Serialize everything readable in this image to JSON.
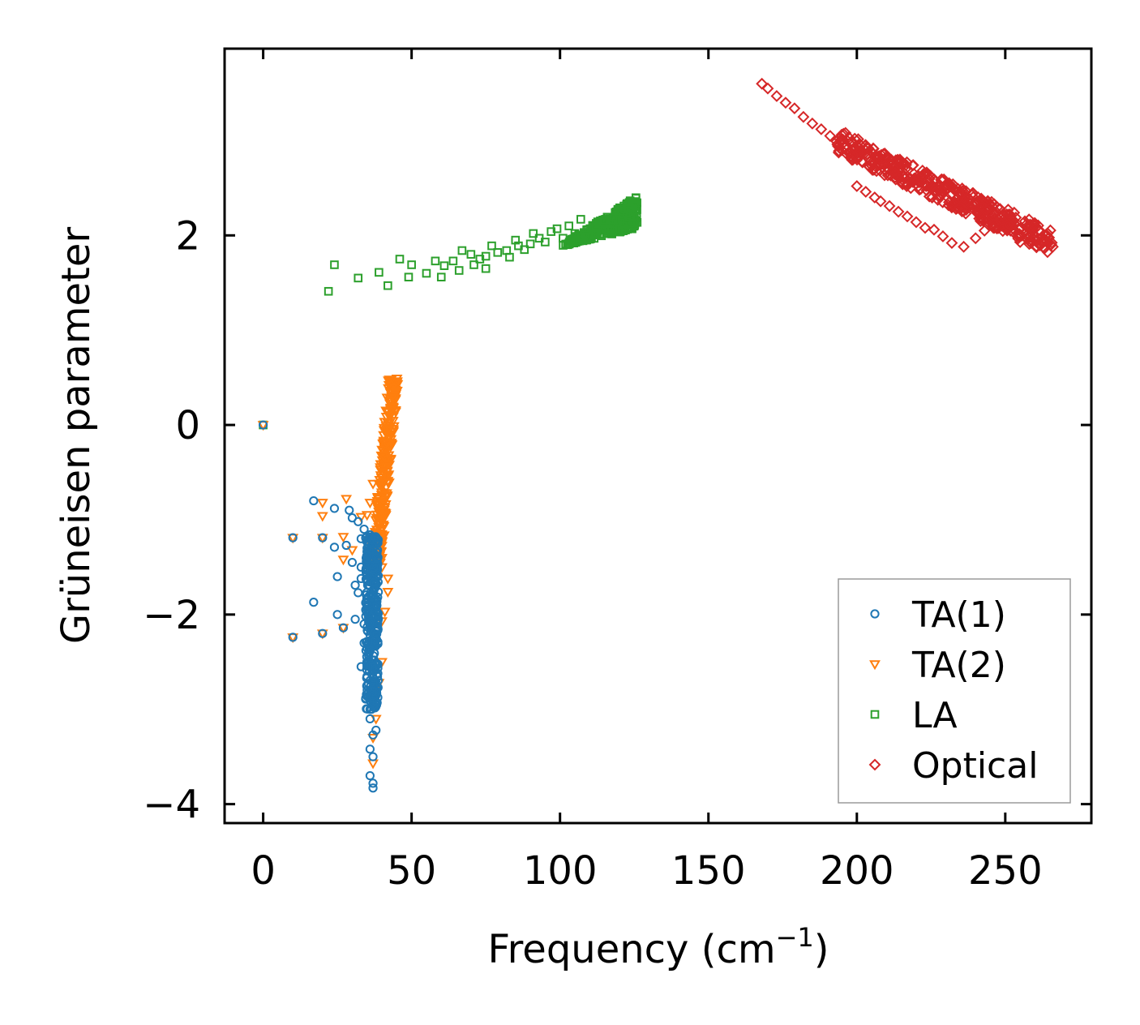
{
  "chart_data": {
    "type": "scatter",
    "title": "",
    "xlabel": "Frequency (cm",
    "xlabel_sup": "−1",
    "xlabel_tail": ")",
    "ylabel": "Grüneisen parameter",
    "xlim": [
      -13,
      279
    ],
    "ylim": [
      -4.2,
      3.97
    ],
    "xticks": [
      0,
      50,
      100,
      150,
      200,
      250
    ],
    "xtick_labels": [
      "0",
      "50",
      "100",
      "150",
      "200",
      "250"
    ],
    "yticks": [
      -4,
      -2,
      0,
      2
    ],
    "ytick_labels": [
      "−4",
      "−2",
      "0",
      "2"
    ],
    "grid": false,
    "legend_position": "bottom-right",
    "series": [
      {
        "name": "TA(1)",
        "marker": "circle",
        "color": "#1f77b4",
        "points": [
          [
            0,
            0
          ],
          [
            10,
            -1.19
          ],
          [
            20,
            -1.19
          ],
          [
            17,
            -0.8
          ],
          [
            24,
            -0.88
          ],
          [
            29,
            -0.9
          ],
          [
            30,
            -0.98
          ],
          [
            32,
            -1.02
          ],
          [
            28,
            -1.27
          ],
          [
            24,
            -1.29
          ],
          [
            30,
            -1.45
          ],
          [
            33,
            -1.5
          ],
          [
            25,
            -1.6
          ],
          [
            31,
            -1.69
          ],
          [
            32,
            -1.77
          ],
          [
            17,
            -1.87
          ],
          [
            25,
            -2.0
          ],
          [
            31,
            -2.05
          ],
          [
            34,
            -2.1
          ],
          [
            27,
            -2.14
          ],
          [
            20,
            -2.2
          ],
          [
            10,
            -2.24
          ],
          [
            33,
            -1.2
          ],
          [
            34,
            -1.1
          ],
          [
            35,
            -1.3
          ],
          [
            33,
            -1.62
          ],
          [
            35,
            -1.9
          ],
          [
            38,
            -1.33
          ],
          [
            34,
            -2.3
          ],
          [
            33,
            -2.55
          ],
          [
            36,
            -3.0
          ],
          [
            36,
            -3.1
          ],
          [
            37,
            -3.27
          ],
          [
            36,
            -3.42
          ],
          [
            37,
            -3.5
          ],
          [
            36,
            -3.7
          ],
          [
            37,
            -3.78
          ],
          [
            37,
            -3.83
          ],
          [
            38,
            -3.22
          ],
          [
            37,
            -2.93
          ]
        ],
        "dense": [
          {
            "x": [
              34,
              39
            ],
            "y": [
              -3.0,
              -1.15
            ],
            "n": 320
          }
        ]
      },
      {
        "name": "TA(2)",
        "marker": "triangle-down",
        "color": "#ff7f0e",
        "points": [
          [
            0,
            0
          ],
          [
            10,
            -1.19
          ],
          [
            20,
            -1.19
          ],
          [
            20,
            -0.82
          ],
          [
            20,
            -0.96
          ],
          [
            28,
            -0.78
          ],
          [
            27,
            -1.18
          ],
          [
            27,
            -1.42
          ],
          [
            27,
            -2.14
          ],
          [
            20,
            -2.2
          ],
          [
            10,
            -2.24
          ],
          [
            30,
            -1.32
          ],
          [
            33,
            -0.97
          ],
          [
            35,
            -0.95
          ],
          [
            37,
            -1.27
          ],
          [
            38,
            -1.4
          ],
          [
            40,
            -1.5
          ],
          [
            42,
            -1.62
          ],
          [
            37,
            -3.57
          ],
          [
            37,
            -3.3
          ],
          [
            38,
            -3.1
          ],
          [
            39,
            -2.72
          ],
          [
            40,
            -2.5
          ],
          [
            40,
            -2.07
          ],
          [
            41,
            -1.97
          ],
          [
            42,
            -1.76
          ],
          [
            36,
            -0.82
          ],
          [
            37,
            -0.62
          ],
          [
            39,
            -0.62
          ]
        ],
        "dense": [
          {
            "x": [
              36,
              46
            ],
            "y": [
              -1.5,
              0.5
            ],
            "n": 260
          }
        ]
      },
      {
        "name": "LA",
        "marker": "square",
        "color": "#2ca02c",
        "points": [
          [
            0,
            0
          ],
          [
            22,
            1.41
          ],
          [
            24,
            1.69
          ],
          [
            32,
            1.55
          ],
          [
            39,
            1.61
          ],
          [
            42,
            1.47
          ],
          [
            46,
            1.75
          ],
          [
            49,
            1.56
          ],
          [
            50,
            1.69
          ],
          [
            55,
            1.6
          ],
          [
            58,
            1.73
          ],
          [
            60,
            1.56
          ],
          [
            61,
            1.68
          ],
          [
            64,
            1.73
          ],
          [
            66,
            1.63
          ],
          [
            67,
            1.84
          ],
          [
            70,
            1.8
          ],
          [
            71,
            1.69
          ],
          [
            73,
            1.75
          ],
          [
            75,
            1.78
          ],
          [
            75,
            1.65
          ],
          [
            77,
            1.89
          ],
          [
            79,
            1.82
          ],
          [
            82,
            1.84
          ],
          [
            83,
            1.77
          ],
          [
            85,
            1.95
          ],
          [
            86,
            1.89
          ],
          [
            88,
            1.85
          ],
          [
            90,
            1.91
          ],
          [
            91,
            2.02
          ],
          [
            93,
            1.97
          ],
          [
            95,
            1.93
          ],
          [
            97,
            2.04
          ],
          [
            99,
            2.07
          ],
          [
            101,
            1.97
          ],
          [
            103,
            2.1
          ],
          [
            105,
            2.02
          ],
          [
            107,
            2.17
          ],
          [
            109,
            2.06
          ]
        ],
        "dense": [
          {
            "x": [
              100,
              126
            ],
            "y": [
              1.88,
              2.43
            ],
            "n": 300
          }
        ]
      },
      {
        "name": "Optical",
        "marker": "diamond",
        "color": "#d62728",
        "points": [
          [
            168,
            3.6
          ],
          [
            170,
            3.55
          ],
          [
            173,
            3.47
          ],
          [
            176,
            3.4
          ],
          [
            179,
            3.34
          ],
          [
            182,
            3.25
          ],
          [
            185,
            3.18
          ],
          [
            188,
            3.12
          ],
          [
            191,
            3.05
          ],
          [
            200,
            2.52
          ],
          [
            203,
            2.46
          ],
          [
            206,
            2.4
          ],
          [
            208,
            2.36
          ],
          [
            211,
            2.31
          ],
          [
            214,
            2.25
          ],
          [
            217,
            2.2
          ],
          [
            220,
            2.14
          ],
          [
            223,
            2.08
          ],
          [
            226,
            2.06
          ],
          [
            229,
            1.99
          ],
          [
            232,
            1.92
          ],
          [
            236,
            1.88
          ],
          [
            240,
            1.97
          ],
          [
            243,
            2.05
          ],
          [
            246,
            2.08
          ],
          [
            249,
            2.16
          ],
          [
            251,
            2.2
          ],
          [
            253,
            2.24
          ],
          [
            255,
            1.93
          ],
          [
            258,
            1.94
          ],
          [
            262,
            1.9
          ],
          [
            266,
            1.88
          ]
        ],
        "dense": [
          {
            "x": [
              193,
              266
            ],
            "y": [
              1.85,
              3.0
            ],
            "n": 420
          }
        ]
      }
    ]
  }
}
